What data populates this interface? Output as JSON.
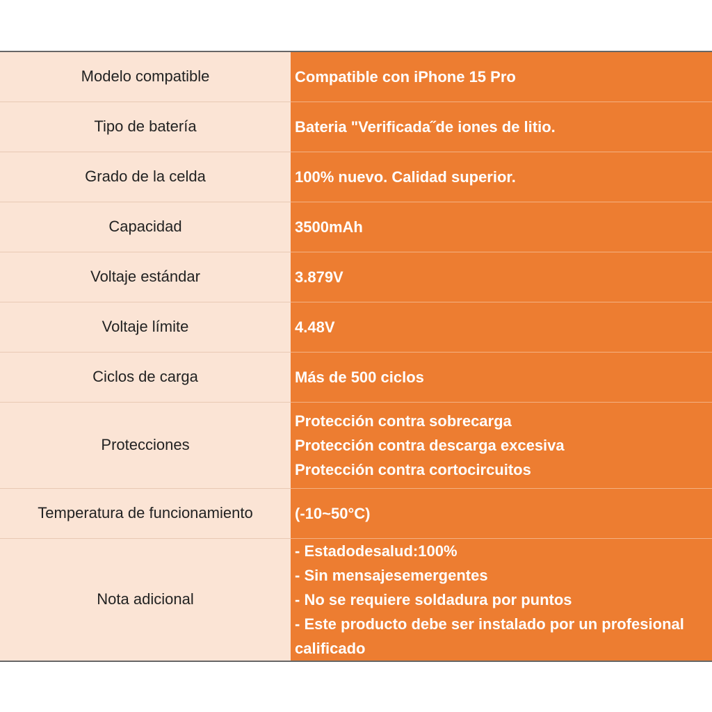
{
  "table": {
    "rows": [
      {
        "label": "Modelo compatible",
        "value": [
          "Compatible con iPhone 15 Pro"
        ]
      },
      {
        "label": "Tipo de batería",
        "value": [
          "Bateria \"Verificada˝de iones de litio."
        ]
      },
      {
        "label": "Grado de la celda",
        "value": [
          "100% nuevo. Calidad superior."
        ]
      },
      {
        "label": "Capacidad",
        "value": [
          "3500mAh"
        ]
      },
      {
        "label": "Voltaje estándar",
        "value": [
          "3.879V"
        ]
      },
      {
        "label": "Voltaje límite",
        "value": [
          "4.48V"
        ]
      },
      {
        "label": "Ciclos de carga",
        "value": [
          "Más de 500 ciclos"
        ]
      },
      {
        "label": "Protecciones",
        "value": [
          "Protección contra sobrecarga",
          "Protección contra descarga excesiva",
          "Protección contra cortocircuitos"
        ]
      },
      {
        "label": "Temperatura de funcionamiento",
        "value": [
          "(-10~50°C)"
        ]
      },
      {
        "label": "Nota adicional",
        "value": [
          "- Estadodesalud:100%",
          "- Sin mensajesemergentes",
          "- No se requiere soldadura por puntos",
          "- Este producto debe ser instalado por un profesional calificado"
        ]
      }
    ]
  }
}
